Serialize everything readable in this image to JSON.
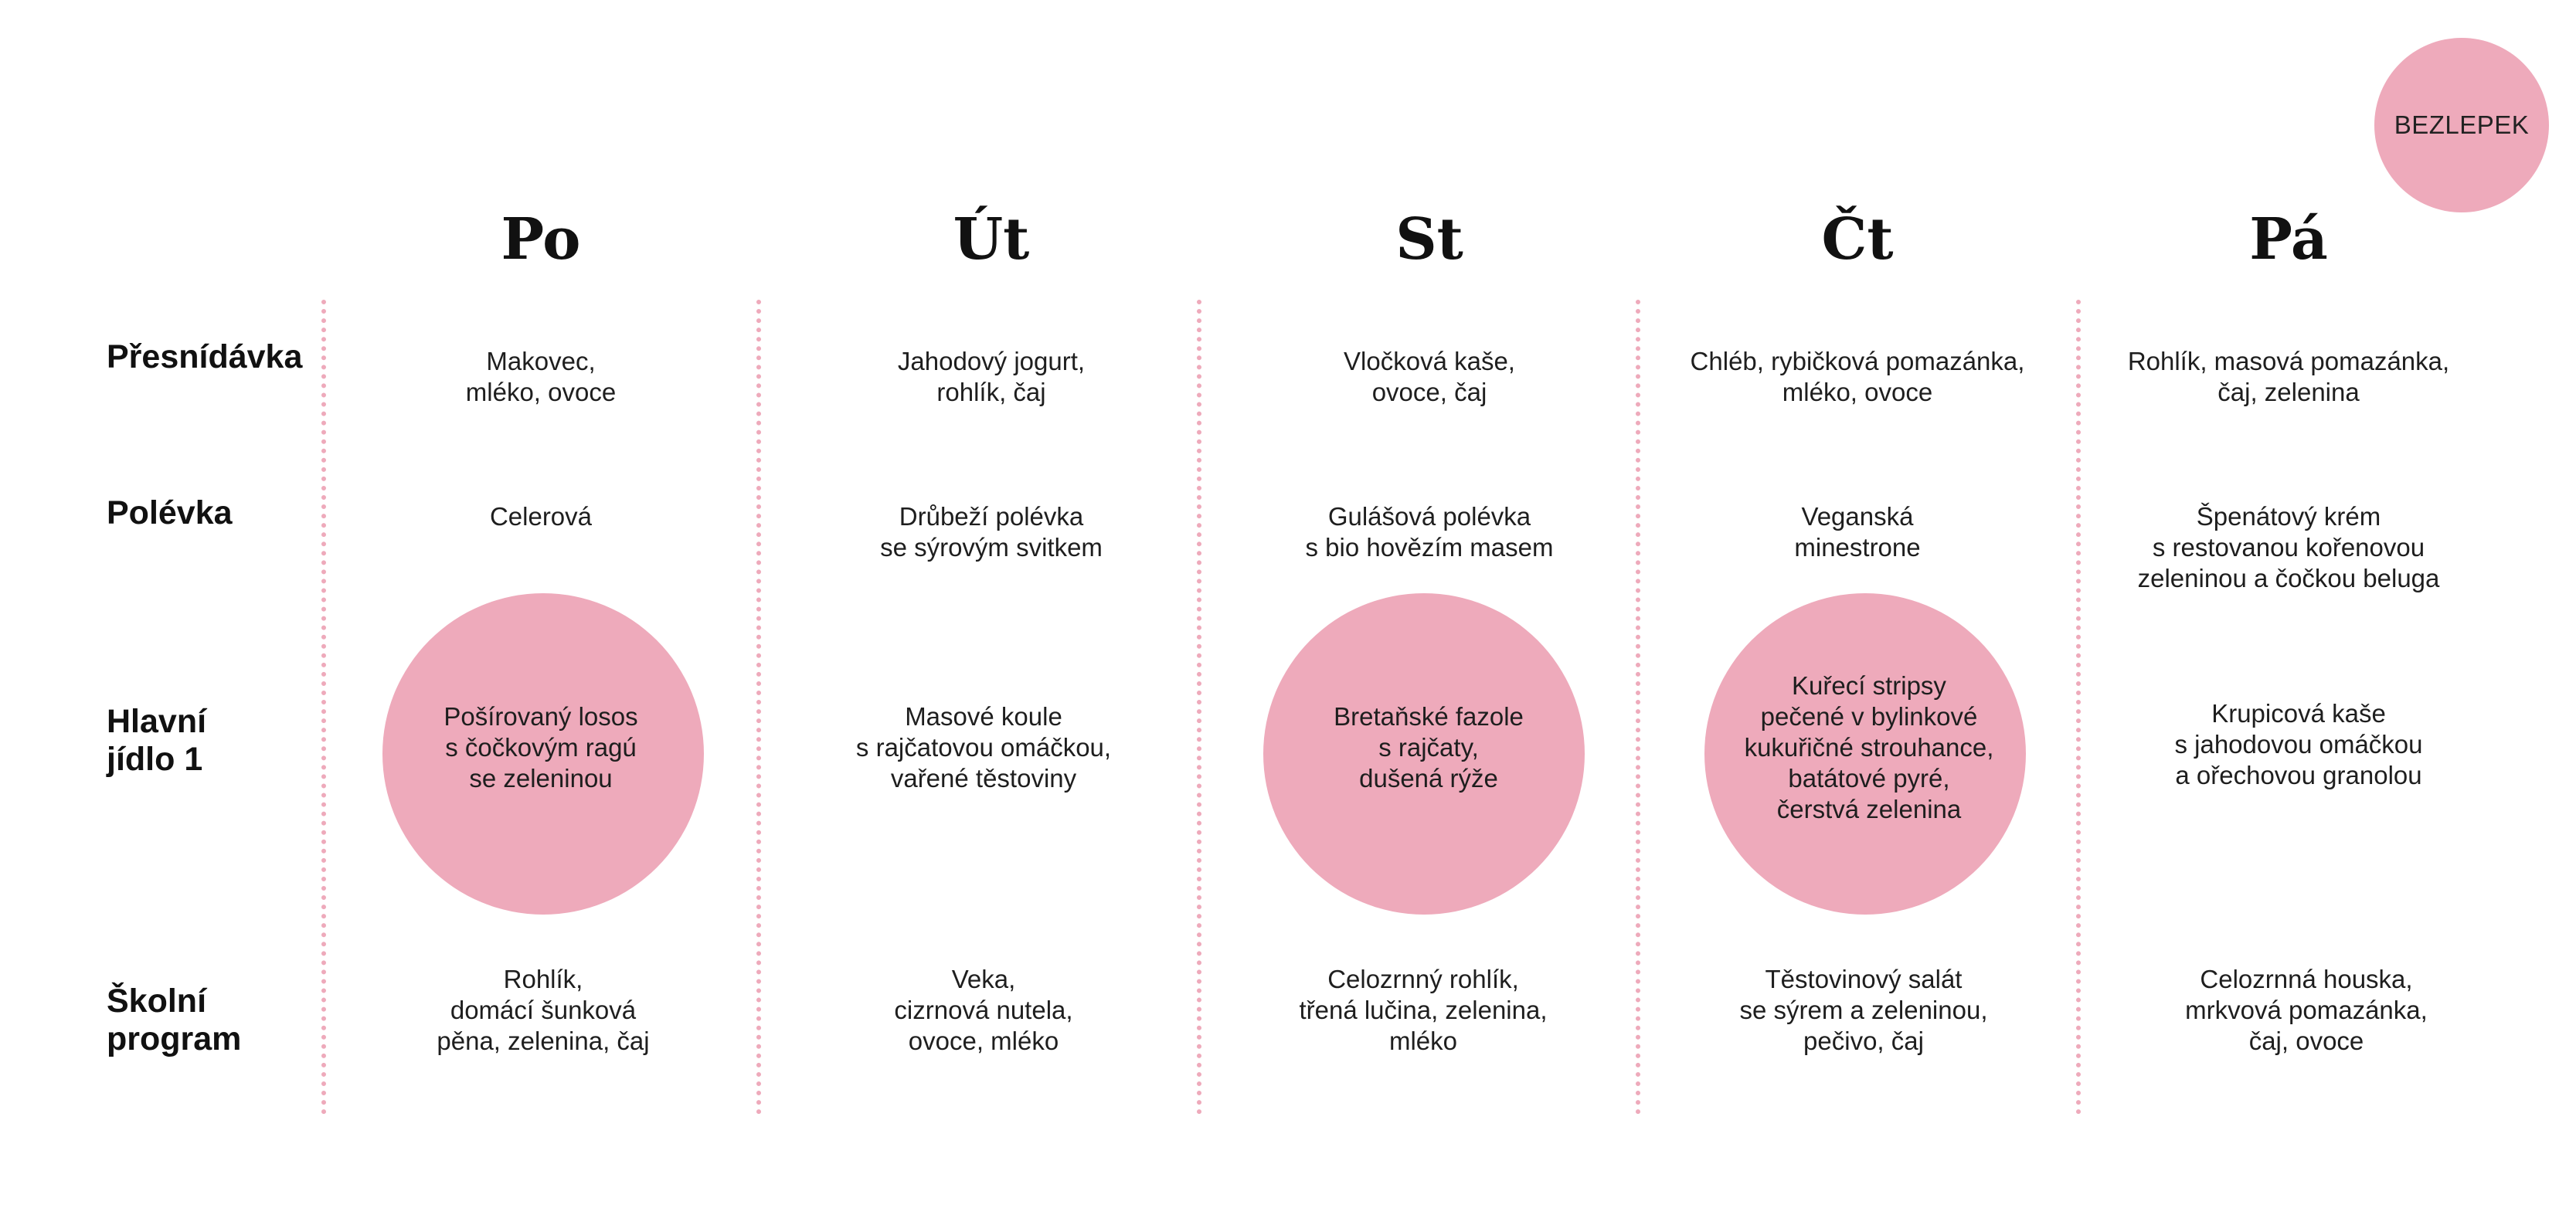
{
  "badge": "BEZLEPEK",
  "days": [
    "Po",
    "Út",
    "St",
    "Čt",
    "Pá"
  ],
  "rows": [
    {
      "label": "Přesnídávka",
      "cells": [
        "Makovec,\nmléko, ovoce",
        "Jahodový jogurt,\nrohlík, čaj",
        "Vločková kaše,\novoce, čaj",
        "Chléb, rybičková pomazánka,\nmléko, ovoce",
        "Rohlík, masová pomazánka,\nčaj, zelenina"
      ]
    },
    {
      "label": "Polévka",
      "cells": [
        "Celerová",
        "Drůbeží polévka\nse sýrovým svitkem",
        "Gulášová polévka\ns bio hovězím masem",
        "Veganská\nminestrone",
        "Špenátový krém\ns restovanou kořenovou\nzeleninou a čočkou beluga"
      ]
    },
    {
      "label": "Hlavní\njídlo 1",
      "cells": [
        "Pošírovaný losos\ns čočkovým ragú\nse zeleninou",
        "Masové koule\ns rajčatovou omáčkou,\nvařené těstoviny",
        "Bretaňské fazole\ns rajčaty,\ndušená rýže",
        "Kuřecí stripsy\npečené v bylinkové\nkukuřičné strouhance,\nbatátové pyré,\nčerstvá zelenina",
        "Krupicová kaše\ns jahodovou omáčkou\na ořechovou granolou"
      ],
      "highlighted": [
        true,
        false,
        true,
        true,
        false
      ]
    },
    {
      "label": "Školní\nprogram",
      "cells": [
        "Rohlík,\ndomácí šunková\npěna, zelenina, čaj",
        "Veka,\ncizrnová nutela,\novoce, mléko",
        "Celozrnný rohlík,\ntřená lučina, zelenina,\nmléko",
        "Těstovinový salát\nse sýrem a zeleninou,\npečivo, čaj",
        "Celozrnná houska,\nmrkvová pomazánka,\nčaj, ovoce"
      ]
    }
  ],
  "colors": {
    "accent": "#eeaabb",
    "text": "#1e1e1e"
  }
}
